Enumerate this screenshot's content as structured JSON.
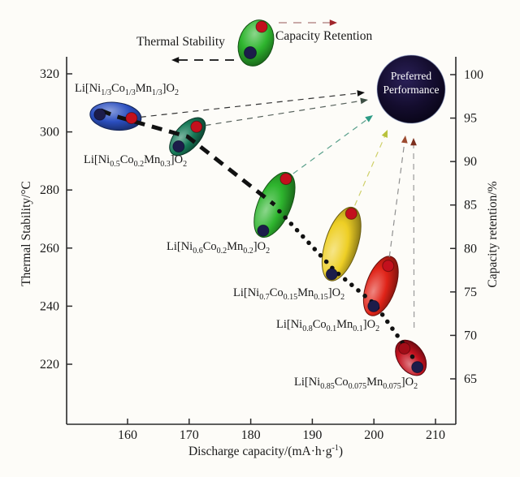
{
  "figure": {
    "background": "#fdfcf8",
    "kind": "materials performance bubble chart"
  },
  "legend": {
    "thermal_label": "Thermal Stability",
    "retention_label": "Capacity Retention",
    "thermal_arrow_color": "#111111",
    "retention_arrow_color": "#a1252b",
    "bubble_color": "#2eb52e",
    "top_dot_color": "#c3101d",
    "bottom_dot_color": "#1c1c4a"
  },
  "preferred": {
    "line1": "Preferred",
    "line2": "Performance",
    "fill": "#140d2e",
    "text_color": "#ffffff"
  },
  "axes": {
    "x": {
      "title": "Discharge capacity/(mA·h·g^{-1})",
      "ticks": [
        160,
        170,
        180,
        190,
        200,
        210
      ]
    },
    "y_left": {
      "title": "Thermal Stability/°C",
      "ticks": [
        320,
        300,
        280,
        260,
        240,
        220
      ]
    },
    "y_right": {
      "title": "Capacity retention/%",
      "ticks": [
        100,
        95,
        90,
        85,
        80,
        75,
        70,
        65
      ]
    }
  },
  "chart_data": {
    "type": "scatter",
    "xlabel": "Discharge capacity/(mA·h·g⁻¹)",
    "ylabel_left": "Thermal Stability/°C",
    "ylabel_right": "Capacity retention/%",
    "x_range": [
      150,
      213
    ],
    "y_left_range": [
      210,
      325
    ],
    "y_right_range": [
      62.5,
      102.5
    ],
    "grid": false,
    "marker_colors": {
      "thermal_dot": "#1c1c4a",
      "retention_dot": "#c3101d"
    },
    "trend": {
      "style": "dashed-then-dotted",
      "color": "#111111",
      "direction": "high thermal stability to high discharge capacity"
    },
    "series": [
      {
        "formula": "Li[Ni_{1/3}Co_{1/3}Mn_{1/3}]O_{2}",
        "color": "#2b4fc0",
        "discharge_capacity": 158,
        "thermal_stability_C": 306,
        "capacity_retention_pct": 95
      },
      {
        "formula": "Li[Ni_{0.5}Co_{0.2}Mn_{0.3}]O_{2}",
        "color": "#177a58",
        "discharge_capacity": 170,
        "thermal_stability_C": 295,
        "capacity_retention_pct": 94
      },
      {
        "formula": "Li[Ni_{0.6}Co_{0.2}Mn_{0.2}]O_{2}",
        "color": "#2eb52e",
        "discharge_capacity": 184,
        "thermal_stability_C": 266,
        "capacity_retention_pct": 88
      },
      {
        "formula": "Li[Ni_{0.7}Co_{0.15}Mn_{0.15}]O_{2}",
        "color": "#eecf25",
        "discharge_capacity": 195,
        "thermal_stability_C": 251,
        "capacity_retention_pct": 84
      },
      {
        "formula": "Li[Ni_{0.8}Co_{0.1}Mn_{0.1}]O_{2}",
        "color": "#e02318",
        "discharge_capacity": 201,
        "thermal_stability_C": 240,
        "capacity_retention_pct": 78
      },
      {
        "formula": "Li[Ni_{0.85}Co_{0.075}Mn_{0.075}]O_{2}",
        "color": "#c3121f",
        "discharge_capacity": 206,
        "thermal_stability_C": 219,
        "capacity_retention_pct": 68.5
      }
    ],
    "annotations": {
      "preferred_performance": "Preferred Performance"
    }
  }
}
